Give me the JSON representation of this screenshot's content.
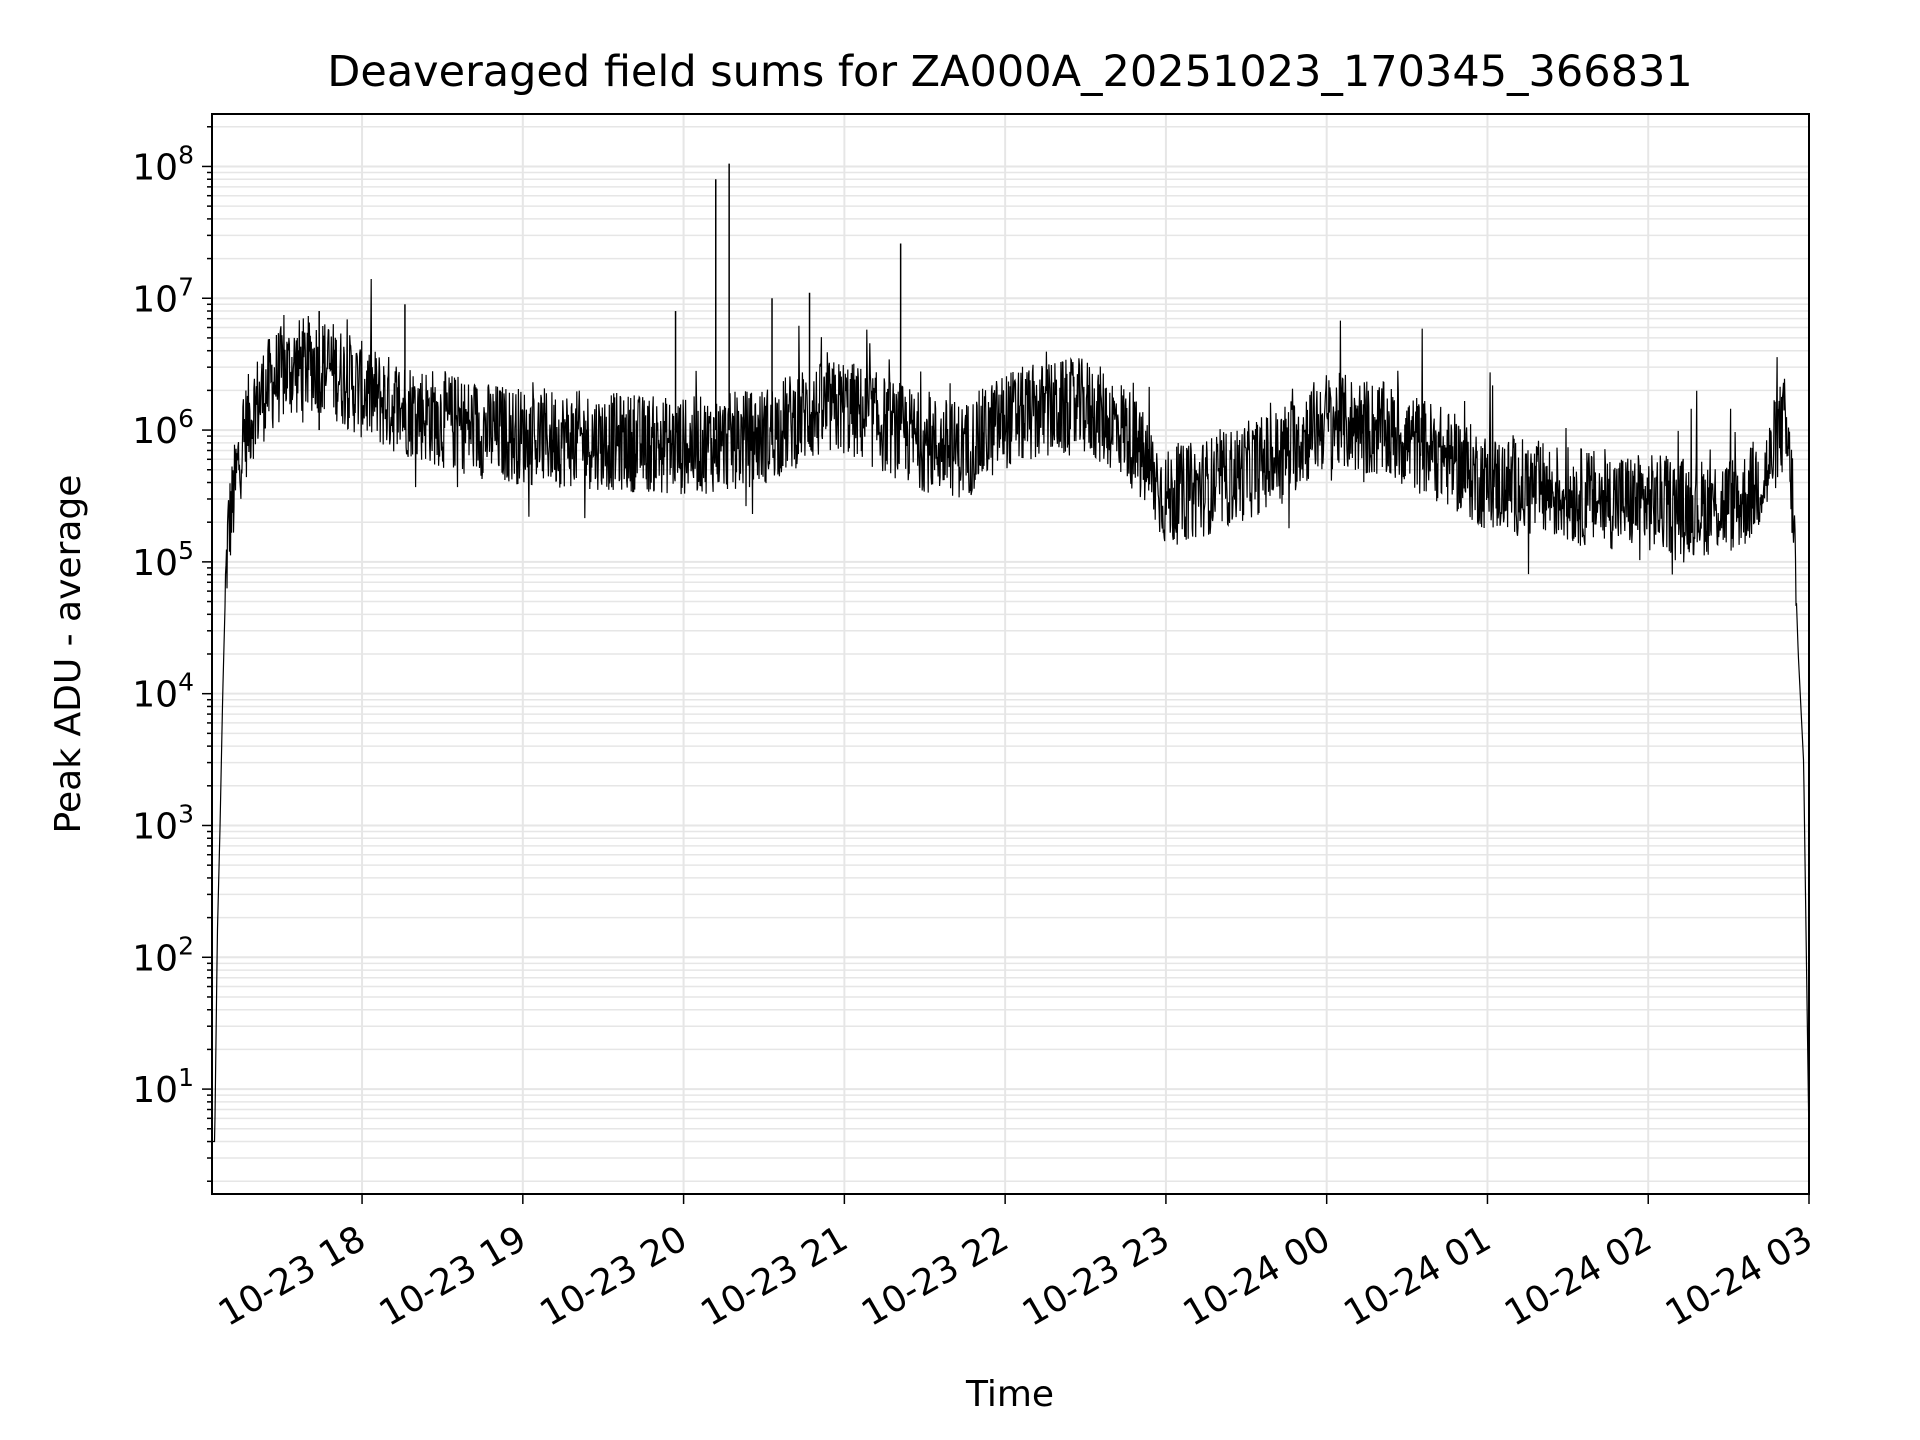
{
  "chart_data": {
    "type": "line",
    "title": "Deaveraged field sums for ZA000A_20251023_170345_366831",
    "xlabel": "Time",
    "ylabel": "Peak ADU - average",
    "xlim": [
      "2025-10-23 17:04",
      "2025-10-24 03:00"
    ],
    "yscale": "log",
    "ylim": [
      1.6,
      250000000
    ],
    "grid": true,
    "line_color": "#000000",
    "grid_color": "#e6e6e6",
    "x_tick_labels": [
      {
        "t": "2025-10-23 18:00",
        "label": "10-23 18"
      },
      {
        "t": "2025-10-23 19:00",
        "label": "10-23 19"
      },
      {
        "t": "2025-10-23 20:00",
        "label": "10-23 20"
      },
      {
        "t": "2025-10-23 21:00",
        "label": "10-23 21"
      },
      {
        "t": "2025-10-23 22:00",
        "label": "10-23 22"
      },
      {
        "t": "2025-10-23 23:00",
        "label": "10-23 23"
      },
      {
        "t": "2025-10-24 00:00",
        "label": "10-24 00"
      },
      {
        "t": "2025-10-24 01:00",
        "label": "10-24 01"
      },
      {
        "t": "2025-10-24 02:00",
        "label": "10-24 02"
      },
      {
        "t": "2025-10-24 03:00",
        "label": "10-24 03"
      }
    ],
    "y_tick_labels": [
      {
        "value": 10,
        "base": "10",
        "exp": "1"
      },
      {
        "value": 100,
        "base": "10",
        "exp": "2"
      },
      {
        "value": 1000,
        "base": "10",
        "exp": "3"
      },
      {
        "value": 10000,
        "base": "10",
        "exp": "4"
      },
      {
        "value": 100000,
        "base": "10",
        "exp": "5"
      },
      {
        "value": 1000000,
        "base": "10",
        "exp": "6"
      },
      {
        "value": 10000000,
        "base": "10",
        "exp": "7"
      },
      {
        "value": 100000000,
        "base": "10",
        "exp": "8"
      }
    ],
    "series": [
      {
        "x": [
          "2025-10-23 17:04",
          "2025-10-23 17:05",
          "2025-10-23 17:06",
          "2025-10-23 17:07",
          "2025-10-23 17:08",
          "2025-10-23 17:09",
          "2025-10-23 17:10",
          "2025-10-23 17:12",
          "2025-10-23 17:14",
          "2025-10-23 17:16",
          "2025-10-23 17:18",
          "2025-10-23 17:20",
          "2025-10-23 17:24",
          "2025-10-23 17:28",
          "2025-10-23 17:32",
          "2025-10-23 17:36",
          "2025-10-23 17:42",
          "2025-10-23 17:48",
          "2025-10-23 17:54",
          "2025-10-23 18:00",
          "2025-10-23 18:10",
          "2025-10-23 18:20",
          "2025-10-23 18:30",
          "2025-10-23 18:45",
          "2025-10-23 19:00",
          "2025-10-23 19:20",
          "2025-10-23 19:40",
          "2025-10-23 20:00",
          "2025-10-23 20:15",
          "2025-10-23 20:30",
          "2025-10-23 20:45",
          "2025-10-23 21:00",
          "2025-10-23 21:15",
          "2025-10-23 21:30",
          "2025-10-23 21:45",
          "2025-10-23 22:00",
          "2025-10-23 22:15",
          "2025-10-23 22:30",
          "2025-10-23 22:45",
          "2025-10-23 23:00",
          "2025-10-23 23:20",
          "2025-10-23 23:40",
          "2025-10-24 00:00",
          "2025-10-24 00:20",
          "2025-10-24 00:40",
          "2025-10-24 01:00",
          "2025-10-24 01:20",
          "2025-10-24 01:40",
          "2025-10-24 02:00",
          "2025-10-24 02:20",
          "2025-10-24 02:35",
          "2025-10-24 02:45",
          "2025-10-24 02:48",
          "2025-10-24 02:51",
          "2025-10-24 02:54",
          "2025-10-24 02:56",
          "2025-10-24 02:58",
          "2025-10-24 03:00"
        ],
        "y": [
          4,
          4,
          150,
          1000,
          10000,
          60000,
          170000,
          300000,
          600000,
          900000,
          1200000,
          1500000,
          2000000,
          2500000,
          2800000,
          3000000,
          3200000,
          3000000,
          2400000,
          2000000,
          1600000,
          1400000,
          1200000,
          1000000,
          900000,
          850000,
          800000,
          750000,
          800000,
          900000,
          1300000,
          1500000,
          1100000,
          800000,
          700000,
          1200000,
          1400000,
          1500000,
          1000000,
          300000,
          400000,
          600000,
          1200000,
          1000000,
          700000,
          400000,
          350000,
          300000,
          280000,
          260000,
          280000,
          500000,
          900000,
          1100000,
          300000,
          20000,
          3000,
          4
        ]
      }
    ],
    "spikes": [
      {
        "x": "2025-10-23 20:12",
        "y": 80000000
      },
      {
        "x": "2025-10-23 20:17",
        "y": 105000000
      },
      {
        "x": "2025-10-23 20:33",
        "y": 10000000
      },
      {
        "x": "2025-10-23 20:47",
        "y": 11000000
      },
      {
        "x": "2025-10-23 21:21",
        "y": 26000000
      },
      {
        "x": "2025-10-23 19:57",
        "y": 8000000
      },
      {
        "x": "2025-10-23 17:44",
        "y": 8000000
      },
      {
        "x": "2025-10-23 18:16",
        "y": 9000000
      }
    ]
  }
}
